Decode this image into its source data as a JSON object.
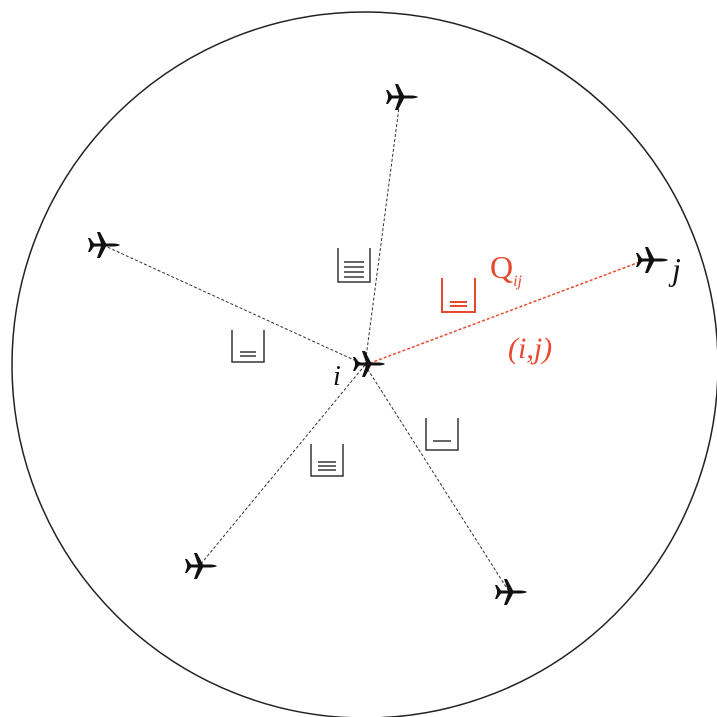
{
  "nodes": [
    {
      "label": "i"
    },
    {
      "label": "j"
    }
  ],
  "edge": {
    "symbol": "Q",
    "subscript": "ij",
    "pair": "(i,j)"
  }
}
